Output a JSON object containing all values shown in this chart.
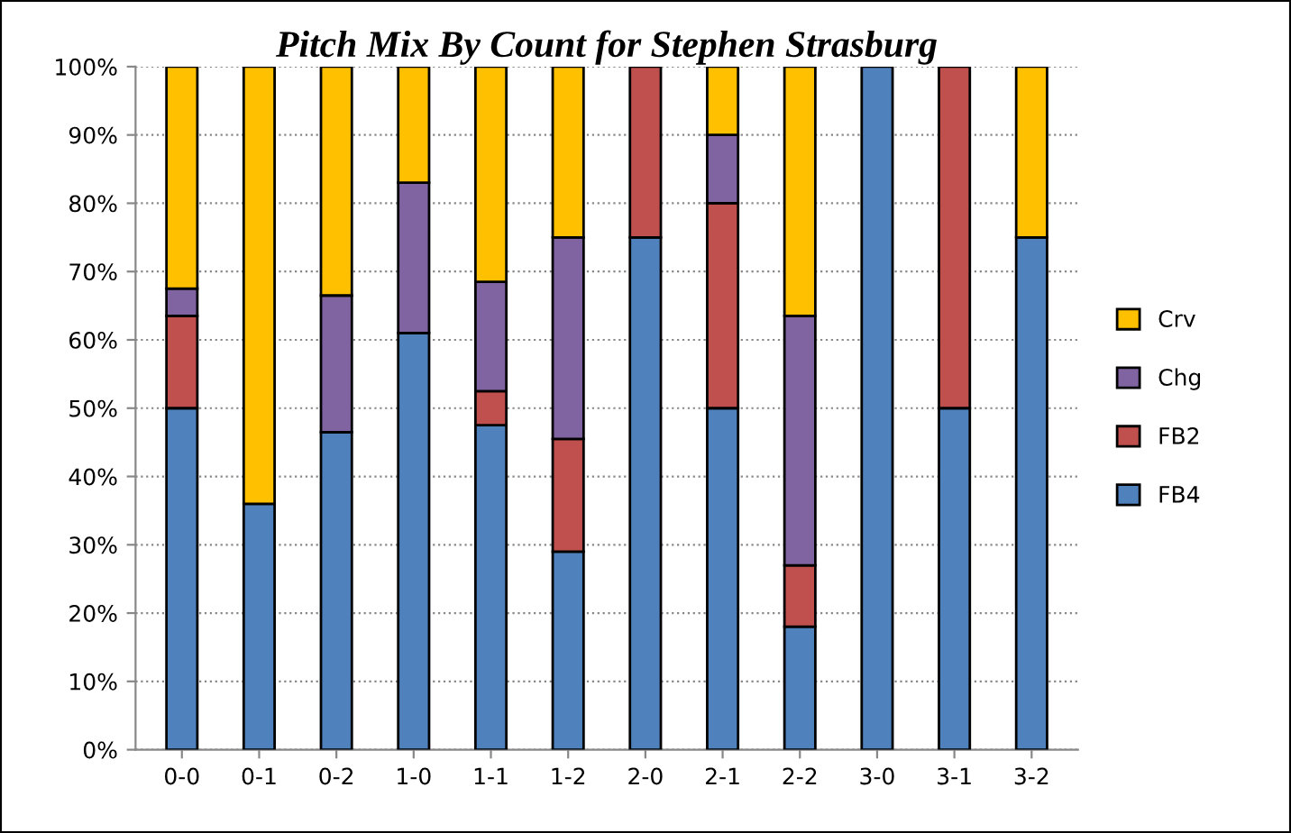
{
  "chart_data": {
    "type": "bar",
    "stacked": true,
    "title": "Pitch Mix By Count for Stephen Strasburg",
    "categories": [
      "0-0",
      "0-1",
      "0-2",
      "1-0",
      "1-1",
      "1-2",
      "2-0",
      "2-1",
      "2-2",
      "3-0",
      "3-1",
      "3-2"
    ],
    "series": [
      {
        "name": "FB4",
        "color": "#4f81bd",
        "values": [
          50,
          36,
          46.5,
          61,
          47.5,
          29,
          75,
          50,
          18,
          100,
          50,
          75
        ]
      },
      {
        "name": "FB2",
        "color": "#c0504d",
        "values": [
          13.5,
          null,
          null,
          null,
          5,
          16.5,
          25,
          30,
          9,
          null,
          50,
          null
        ]
      },
      {
        "name": "Chg",
        "color": "#8064a2",
        "values": [
          4,
          null,
          20,
          22,
          16,
          29.5,
          null,
          10,
          36.5,
          null,
          null,
          null
        ]
      },
      {
        "name": "Crv",
        "color": "#ffc000",
        "values": [
          32.5,
          64,
          33.5,
          17,
          31.5,
          25,
          null,
          10,
          36.5,
          null,
          null,
          25
        ]
      }
    ],
    "ylim": [
      0,
      100
    ],
    "yticks": [
      {
        "value": 0,
        "label": "0%"
      },
      {
        "value": 10,
        "label": "10%"
      },
      {
        "value": 20,
        "label": "20%"
      },
      {
        "value": 30,
        "label": "30%"
      },
      {
        "value": 40,
        "label": "40%"
      },
      {
        "value": 50,
        "label": "50%"
      },
      {
        "value": 60,
        "label": "60%"
      },
      {
        "value": 70,
        "label": "70%"
      },
      {
        "value": 80,
        "label": "80%"
      },
      {
        "value": 90,
        "label": "90%"
      },
      {
        "value": 100,
        "label": "100%"
      }
    ],
    "grid": "y",
    "legend": "right"
  }
}
